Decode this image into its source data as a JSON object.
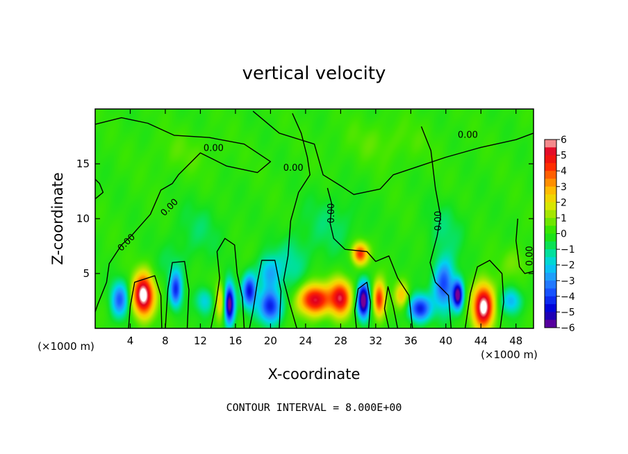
{
  "chart_data": {
    "type": "heatmap",
    "title": "vertical velocity",
    "xlabel": "X-coordinate",
    "ylabel": "Z-coordinate",
    "x_unit_left": "(×1000 m)",
    "x_unit_right": "(×1000 m)",
    "xlim": [
      0,
      50
    ],
    "ylim": [
      0,
      20
    ],
    "x_ticks": [
      4,
      8,
      12,
      16,
      20,
      24,
      28,
      32,
      36,
      40,
      44,
      48
    ],
    "x_tick_labels": [
      "4",
      "8",
      "12",
      "16",
      "20",
      "24",
      "28",
      "32",
      "36",
      "40",
      "44",
      "48"
    ],
    "y_ticks": [
      5,
      10,
      15
    ],
    "y_tick_labels": [
      "5",
      "10",
      "15"
    ],
    "colorbar": {
      "min": -6,
      "max": 6,
      "ticks": [
        6,
        5,
        4,
        3,
        2,
        1,
        0,
        -1,
        -2,
        -3,
        -4,
        -5,
        -6
      ],
      "tick_labels": [
        "6",
        "5",
        "4",
        "3",
        "2",
        "1",
        "0",
        "−1",
        "−2",
        "−3",
        "−4",
        "−5",
        "−6"
      ]
    },
    "contour_label": "0.00",
    "footnote": "CONTOUR INTERVAL = 8.000E+00",
    "features": [
      {
        "x": 2.8,
        "z": 2.6,
        "w": -3.5,
        "sx": 1.0,
        "sz": 1.6
      },
      {
        "x": 5.5,
        "z": 3.0,
        "w": 6.5,
        "sx": 1.2,
        "sz": 1.9
      },
      {
        "x": 9.2,
        "z": 3.5,
        "w": -4.0,
        "sx": 0.7,
        "sz": 1.6
      },
      {
        "x": 12.5,
        "z": 2.5,
        "w": -2.0,
        "sx": 1.0,
        "sz": 1.2
      },
      {
        "x": 14.3,
        "z": 2.5,
        "w": 2.5,
        "sx": 0.6,
        "sz": 1.6
      },
      {
        "x": 15.3,
        "z": 2.2,
        "w": -6.5,
        "sx": 0.6,
        "sz": 1.8
      },
      {
        "x": 17.6,
        "z": 3.4,
        "w": -4.5,
        "sx": 0.8,
        "sz": 1.5
      },
      {
        "x": 20.0,
        "z": 2.0,
        "w": -4.5,
        "sx": 1.3,
        "sz": 1.5
      },
      {
        "x": 19.8,
        "z": 5.0,
        "w": -2.5,
        "sx": 1.3,
        "sz": 1.6
      },
      {
        "x": 22.5,
        "z": 6.0,
        "w": -1.2,
        "sx": 2.0,
        "sz": 2.5
      },
      {
        "x": 25.0,
        "z": 2.6,
        "w": 5.5,
        "sx": 1.8,
        "sz": 1.4
      },
      {
        "x": 28.0,
        "z": 2.8,
        "w": 5.0,
        "sx": 1.2,
        "sz": 1.6
      },
      {
        "x": 30.6,
        "z": 2.5,
        "w": -6.5,
        "sx": 0.7,
        "sz": 1.6
      },
      {
        "x": 30.2,
        "z": 6.8,
        "w": 4.5,
        "sx": 0.9,
        "sz": 1.0
      },
      {
        "x": 32.4,
        "z": 2.6,
        "w": 4.5,
        "sx": 0.7,
        "sz": 1.6
      },
      {
        "x": 35.0,
        "z": 3.0,
        "w": 2.5,
        "sx": 0.8,
        "sz": 1.2
      },
      {
        "x": 37.0,
        "z": 1.8,
        "w": -4.5,
        "sx": 1.3,
        "sz": 1.2
      },
      {
        "x": 39.8,
        "z": 4.0,
        "w": -4.0,
        "sx": 1.2,
        "sz": 2.3
      },
      {
        "x": 41.4,
        "z": 3.0,
        "w": -6.0,
        "sx": 0.6,
        "sz": 1.3
      },
      {
        "x": 44.3,
        "z": 2.0,
        "w": 6.5,
        "sx": 1.2,
        "sz": 2.0
      },
      {
        "x": 47.5,
        "z": 2.5,
        "w": -2.5,
        "sx": 1.2,
        "sz": 1.2
      },
      {
        "x": 27.0,
        "z": 9.5,
        "w": -0.8,
        "sx": 3.5,
        "sz": 3.0
      },
      {
        "x": 40.0,
        "z": 9.0,
        "w": -0.8,
        "sx": 2.5,
        "sz": 2.5
      },
      {
        "x": 12.0,
        "z": 9.0,
        "w": -0.7,
        "sx": 3.0,
        "sz": 2.5
      },
      {
        "x": 9.0,
        "z": 6.0,
        "w": -0.6,
        "sx": 2.0,
        "sz": 2.0
      },
      {
        "x": 48.0,
        "z": 6.0,
        "w": 0.8,
        "sx": 1.5,
        "sz": 1.5
      },
      {
        "x": 33.0,
        "z": 17.0,
        "w": 0.5,
        "sx": 5.0,
        "sz": 2.0
      },
      {
        "x": 10.0,
        "z": 16.0,
        "w": 0.4,
        "sx": 4.0,
        "sz": 2.0
      }
    ],
    "zero_contours": [
      [
        [
          0,
          18.6
        ],
        [
          3,
          19.2
        ],
        [
          6,
          18.7
        ],
        [
          9,
          17.6
        ],
        [
          13,
          17.4
        ],
        [
          17,
          16.8
        ],
        [
          20,
          15.2
        ],
        [
          18.5,
          14.2
        ],
        [
          15,
          14.8
        ],
        [
          12,
          16.0
        ],
        [
          9.5,
          14.0
        ],
        [
          8.8,
          13.2
        ],
        [
          7.5,
          12.6
        ],
        [
          6.3,
          10.4
        ],
        [
          4.2,
          8.5
        ],
        [
          3.0,
          7.6
        ],
        [
          1.6,
          5.9
        ],
        [
          1.3,
          4.2
        ],
        [
          0.3,
          2.2
        ],
        [
          0,
          1.5
        ]
      ],
      [
        [
          18,
          19.8
        ],
        [
          21,
          17.8
        ],
        [
          25,
          16.8
        ],
        [
          26,
          14.0
        ],
        [
          28,
          13.0
        ],
        [
          29.5,
          12.2
        ],
        [
          32.5,
          12.7
        ],
        [
          34,
          14.0
        ],
        [
          37,
          14.8
        ],
        [
          40,
          15.6
        ],
        [
          44,
          16.5
        ],
        [
          48,
          17.2
        ],
        [
          50,
          17.8
        ]
      ],
      [
        [
          26.5,
          12.8
        ],
        [
          27,
          11.3
        ],
        [
          26.8,
          9.6
        ],
        [
          27.2,
          8.2
        ],
        [
          28.5,
          7.2
        ],
        [
          31,
          7.0
        ],
        [
          32,
          6.1
        ],
        [
          33.5,
          6.6
        ],
        [
          34.5,
          4.6
        ],
        [
          35.8,
          3.0
        ],
        [
          36.2,
          0
        ]
      ],
      [
        [
          22.5,
          19.6
        ],
        [
          23.5,
          17.8
        ],
        [
          24.2,
          15.6
        ],
        [
          24.5,
          14.0
        ],
        [
          23.2,
          12.4
        ],
        [
          22.3,
          9.8
        ],
        [
          22.0,
          6.6
        ],
        [
          21.5,
          4.4
        ],
        [
          22.2,
          2.2
        ],
        [
          23.0,
          0
        ]
      ],
      [
        [
          29.8,
          0
        ],
        [
          29.6,
          1.6
        ],
        [
          30.0,
          3.6
        ],
        [
          31.0,
          4.2
        ],
        [
          31.4,
          2.4
        ],
        [
          31.2,
          0
        ]
      ],
      [
        [
          33.5,
          0
        ],
        [
          33.0,
          1.8
        ],
        [
          33.4,
          3.8
        ],
        [
          34.0,
          2.0
        ],
        [
          34.5,
          0
        ]
      ],
      [
        [
          37.2,
          18.4
        ],
        [
          38.3,
          16.2
        ],
        [
          38.8,
          12.8
        ],
        [
          39.4,
          10.2
        ],
        [
          39.0,
          8.4
        ],
        [
          38.2,
          6.0
        ],
        [
          38.8,
          4.2
        ],
        [
          40.3,
          3.0
        ],
        [
          40.6,
          0
        ]
      ],
      [
        [
          42.2,
          0
        ],
        [
          42.8,
          3.2
        ],
        [
          43.6,
          5.6
        ],
        [
          45.0,
          6.2
        ],
        [
          46.4,
          5.0
        ],
        [
          46.6,
          2.4
        ],
        [
          46.2,
          0
        ]
      ],
      [
        [
          13.2,
          0
        ],
        [
          13.8,
          2.4
        ],
        [
          14.2,
          4.6
        ],
        [
          13.9,
          7.0
        ],
        [
          14.8,
          8.2
        ],
        [
          15.9,
          7.6
        ],
        [
          16.2,
          5.0
        ],
        [
          16.8,
          2.8
        ],
        [
          17.0,
          0
        ]
      ],
      [
        [
          3.8,
          0
        ],
        [
          4.0,
          2.0
        ],
        [
          4.5,
          4.2
        ],
        [
          6.8,
          4.8
        ],
        [
          7.5,
          3.0
        ],
        [
          7.6,
          0
        ]
      ],
      [
        [
          8.0,
          0
        ],
        [
          8.3,
          3.6
        ],
        [
          8.8,
          6.0
        ],
        [
          10.2,
          6.1
        ],
        [
          10.7,
          3.5
        ],
        [
          10.5,
          0
        ]
      ],
      [
        [
          17.6,
          0
        ],
        [
          18.0,
          1.6
        ],
        [
          18.5,
          4.2
        ],
        [
          19.0,
          6.2
        ],
        [
          20.5,
          6.2
        ],
        [
          21.2,
          3.4
        ],
        [
          21.0,
          0
        ]
      ],
      [
        [
          48.2,
          10.0
        ],
        [
          48.0,
          8.0
        ],
        [
          48.4,
          5.6
        ],
        [
          49.0,
          5.0
        ],
        [
          50,
          5.2
        ]
      ],
      [
        [
          0,
          13.6
        ],
        [
          0.5,
          13.2
        ],
        [
          0.9,
          12.4
        ],
        [
          0,
          11.8
        ]
      ]
    ],
    "contour_label_positions": [
      {
        "x": 13.5,
        "z": 16.4,
        "angle": 0
      },
      {
        "x": 22.6,
        "z": 14.6,
        "angle": 0
      },
      {
        "x": 42.5,
        "z": 17.6,
        "angle": 0
      },
      {
        "x": 27.0,
        "z": 10.5,
        "angle": -90
      },
      {
        "x": 39.2,
        "z": 9.8,
        "angle": -90
      },
      {
        "x": 8.5,
        "z": 11.0,
        "angle": -45
      },
      {
        "x": 3.6,
        "z": 7.8,
        "angle": -45
      },
      {
        "x": 49.6,
        "z": 6.6,
        "angle": -90
      }
    ]
  }
}
